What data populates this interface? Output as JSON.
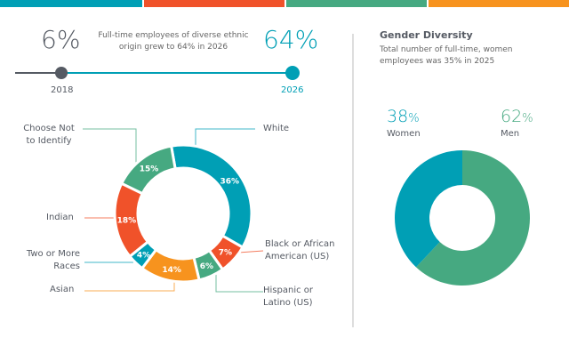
{
  "colors": {
    "teal": "#009fb5",
    "orange": "#f0522a",
    "green": "#46a981",
    "yellow": "#f7931e",
    "gray": "#555a63"
  },
  "top_bar_colors": [
    "#009fb5",
    "#f0522a",
    "#46a981",
    "#f7931e"
  ],
  "timeline": {
    "start_value": "6%",
    "end_value": "64%",
    "description": "Full-time employees of diverse ethnic origin grew to 64% in 2026",
    "start_year": "2018",
    "end_year": "2026"
  },
  "gender": {
    "title": "Gender Diversity",
    "subtitle": "Total number of full-time, women employees was 35% in 2025",
    "women_value": "38",
    "men_value": "62",
    "percent_sign": "%",
    "women_label": "Women",
    "men_label": "Men"
  },
  "chart_data": [
    {
      "type": "donut",
      "slices": [
        {
          "label": "White",
          "value": 36,
          "text": "36%",
          "color": "#009fb5"
        },
        {
          "label": "Black or African American (US)",
          "value": 7,
          "text": "7%",
          "color": "#f0522a"
        },
        {
          "label": "Hispanic or Latino (US)",
          "value": 6,
          "text": "6%",
          "color": "#46a981"
        },
        {
          "label": "Asian",
          "value": 14,
          "text": "14%",
          "color": "#f7931e"
        },
        {
          "label": "Two or More Races",
          "value": 4,
          "text": "4%",
          "color": "#009fb5"
        },
        {
          "label": "Indian",
          "value": 18,
          "text": "18%",
          "color": "#f0522a"
        },
        {
          "label": "Choose Not to Identify",
          "value": 15,
          "text": "15%",
          "color": "#46a981"
        }
      ]
    },
    {
      "type": "donut",
      "slices": [
        {
          "label": "Men",
          "value": 62,
          "color": "#46a981"
        },
        {
          "label": "Women",
          "value": 38,
          "color": "#009fb5"
        }
      ]
    }
  ]
}
